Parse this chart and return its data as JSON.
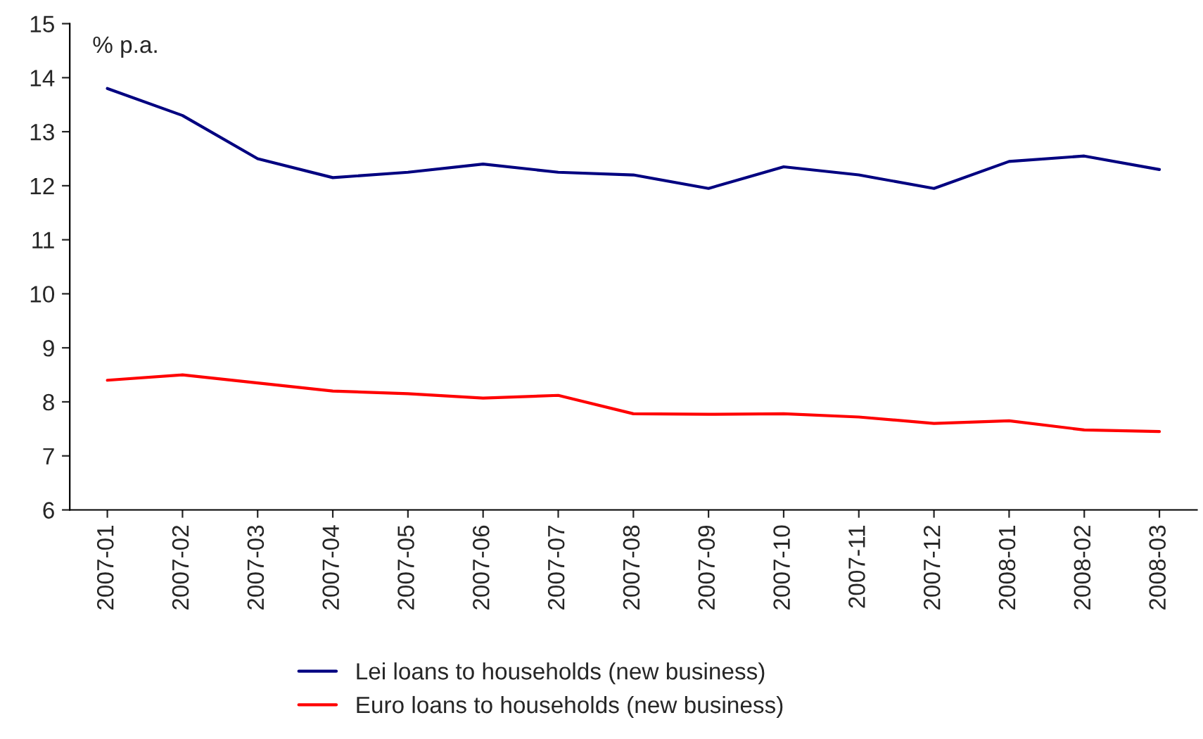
{
  "chart_data": {
    "type": "line",
    "ylabel": "% p.a.",
    "categories": [
      "2007-01",
      "2007-02",
      "2007-03",
      "2007-04",
      "2007-05",
      "2007-06",
      "2007-07",
      "2007-08",
      "2007-09",
      "2007-10",
      "2007-11",
      "2007-12",
      "2008-01",
      "2008-02",
      "2008-03"
    ],
    "series": [
      {
        "name": "Lei loans to households (new business)",
        "color": "#000080",
        "values": [
          13.8,
          13.3,
          12.5,
          12.15,
          12.25,
          12.4,
          12.25,
          12.2,
          11.95,
          12.35,
          12.2,
          11.95,
          12.45,
          12.55,
          12.3
        ]
      },
      {
        "name": "Euro loans to households (new business)",
        "color": "#ff0000",
        "values": [
          8.4,
          8.5,
          8.35,
          8.2,
          8.15,
          8.07,
          8.12,
          7.78,
          7.77,
          7.78,
          7.72,
          7.6,
          7.65,
          7.48,
          7.45
        ]
      }
    ],
    "ylim": [
      6,
      15
    ],
    "yticks": [
      6,
      7,
      8,
      9,
      10,
      11,
      12,
      13,
      14,
      15
    ],
    "grid": false,
    "legend": "bottom",
    "marker": "none",
    "line_style": "solid"
  }
}
